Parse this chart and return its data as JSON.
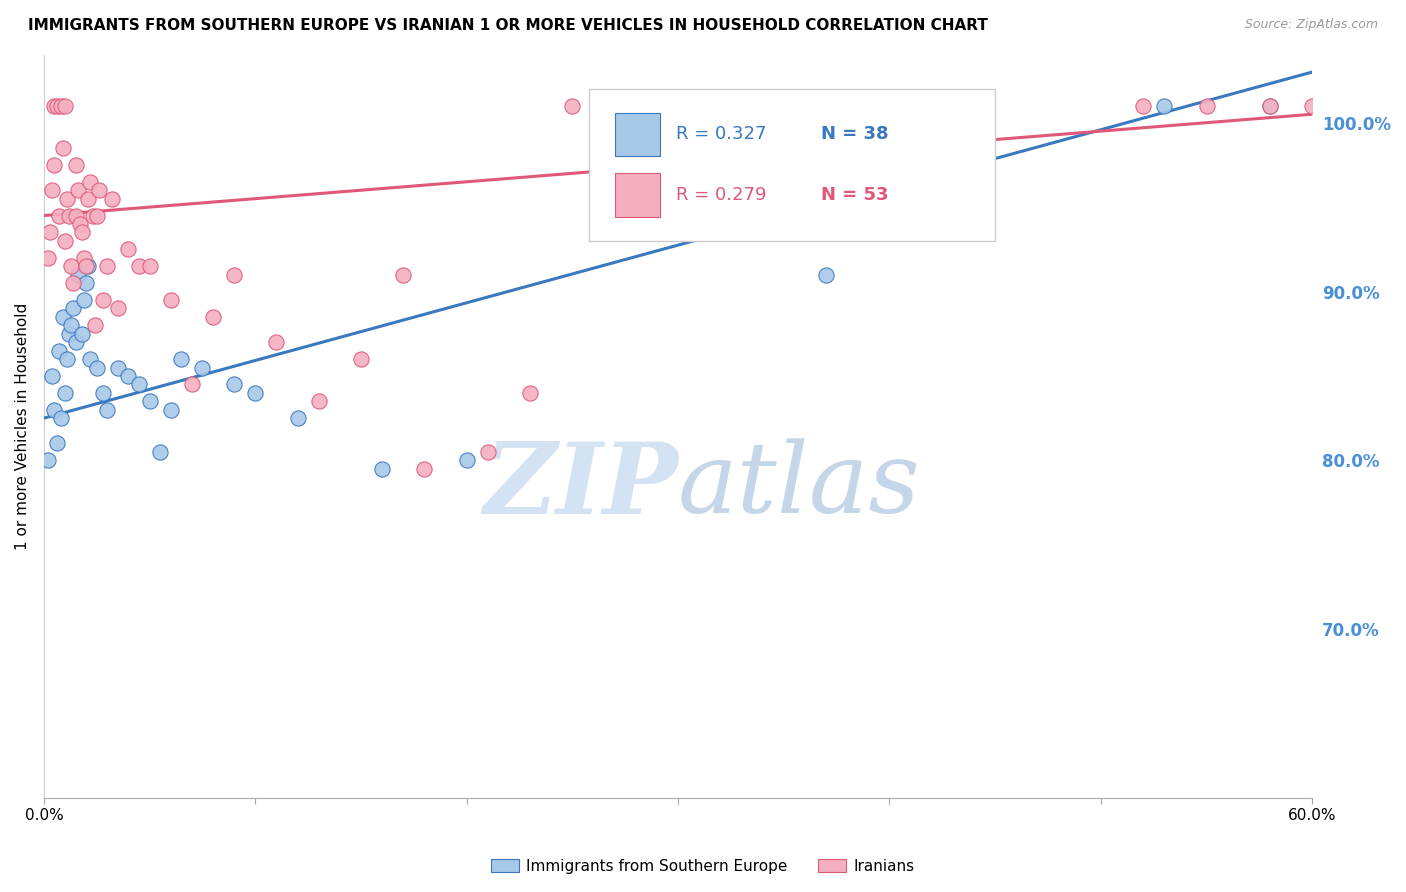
{
  "title": "IMMIGRANTS FROM SOUTHERN EUROPE VS IRANIAN 1 OR MORE VEHICLES IN HOUSEHOLD CORRELATION CHART",
  "source": "Source: ZipAtlas.com",
  "ylabel": "1 or more Vehicles in Household",
  "xlim": [
    0.0,
    60.0
  ],
  "ylim": [
    60.0,
    104.0
  ],
  "yticks": [
    70.0,
    80.0,
    90.0,
    100.0
  ],
  "blue_color": "#a8c8e8",
  "pink_color": "#f4b0c0",
  "blue_line_color": "#3a78c0",
  "pink_line_color": "#e05878",
  "axis_label_color": "#4a90d9",
  "grid_color": "#dddddd",
  "background_color": "#ffffff",
  "watermark_zip": "ZIP",
  "watermark_atlas": "atlas",
  "legend_label_blue": "Immigrants from Southern Europe",
  "legend_label_pink": "Iranians",
  "blue_scatter_x": [
    0.2,
    0.4,
    0.5,
    0.6,
    0.7,
    0.8,
    0.9,
    1.0,
    1.1,
    1.2,
    1.3,
    1.4,
    1.5,
    1.6,
    1.8,
    1.9,
    2.0,
    2.1,
    2.2,
    2.5,
    2.8,
    3.0,
    3.5,
    4.0,
    4.5,
    5.0,
    5.5,
    6.0,
    6.5,
    7.5,
    9.0,
    10.0,
    12.0,
    16.0,
    20.0,
    37.0,
    53.0,
    58.0
  ],
  "blue_scatter_y": [
    80.0,
    85.0,
    83.0,
    81.0,
    86.5,
    82.5,
    88.5,
    84.0,
    86.0,
    87.5,
    88.0,
    89.0,
    87.0,
    91.0,
    87.5,
    89.5,
    90.5,
    91.5,
    86.0,
    85.5,
    84.0,
    83.0,
    85.5,
    85.0,
    84.5,
    83.5,
    80.5,
    83.0,
    86.0,
    85.5,
    84.5,
    84.0,
    82.5,
    79.5,
    80.0,
    91.0,
    101.0,
    101.0
  ],
  "pink_scatter_x": [
    0.2,
    0.3,
    0.4,
    0.5,
    0.5,
    0.6,
    0.7,
    0.8,
    0.9,
    1.0,
    1.0,
    1.1,
    1.2,
    1.3,
    1.4,
    1.5,
    1.5,
    1.6,
    1.7,
    1.8,
    1.9,
    2.0,
    2.1,
    2.2,
    2.3,
    2.4,
    2.5,
    2.6,
    2.8,
    3.0,
    3.2,
    3.5,
    4.0,
    4.5,
    5.0,
    6.0,
    7.0,
    8.0,
    9.0,
    11.0,
    13.0,
    15.0,
    17.0,
    18.0,
    21.0,
    23.0,
    25.0,
    35.0,
    42.0,
    52.0,
    55.0,
    58.0,
    60.0
  ],
  "pink_scatter_y": [
    92.0,
    93.5,
    96.0,
    97.5,
    101.0,
    101.0,
    94.5,
    101.0,
    98.5,
    101.0,
    93.0,
    95.5,
    94.5,
    91.5,
    90.5,
    94.5,
    97.5,
    96.0,
    94.0,
    93.5,
    92.0,
    91.5,
    95.5,
    96.5,
    94.5,
    88.0,
    94.5,
    96.0,
    89.5,
    91.5,
    95.5,
    89.0,
    92.5,
    91.5,
    91.5,
    89.5,
    84.5,
    88.5,
    91.0,
    87.0,
    83.5,
    86.0,
    91.0,
    79.5,
    80.5,
    84.0,
    101.0,
    101.0,
    101.0,
    101.0,
    101.0,
    101.0,
    101.0
  ],
  "blue_trend_x0": 0.0,
  "blue_trend_y0": 82.5,
  "blue_trend_x1": 60.0,
  "blue_trend_y1": 103.0,
  "pink_trend_x0": 0.0,
  "pink_trend_y0": 94.5,
  "pink_trend_x1": 60.0,
  "pink_trend_y1": 100.5
}
